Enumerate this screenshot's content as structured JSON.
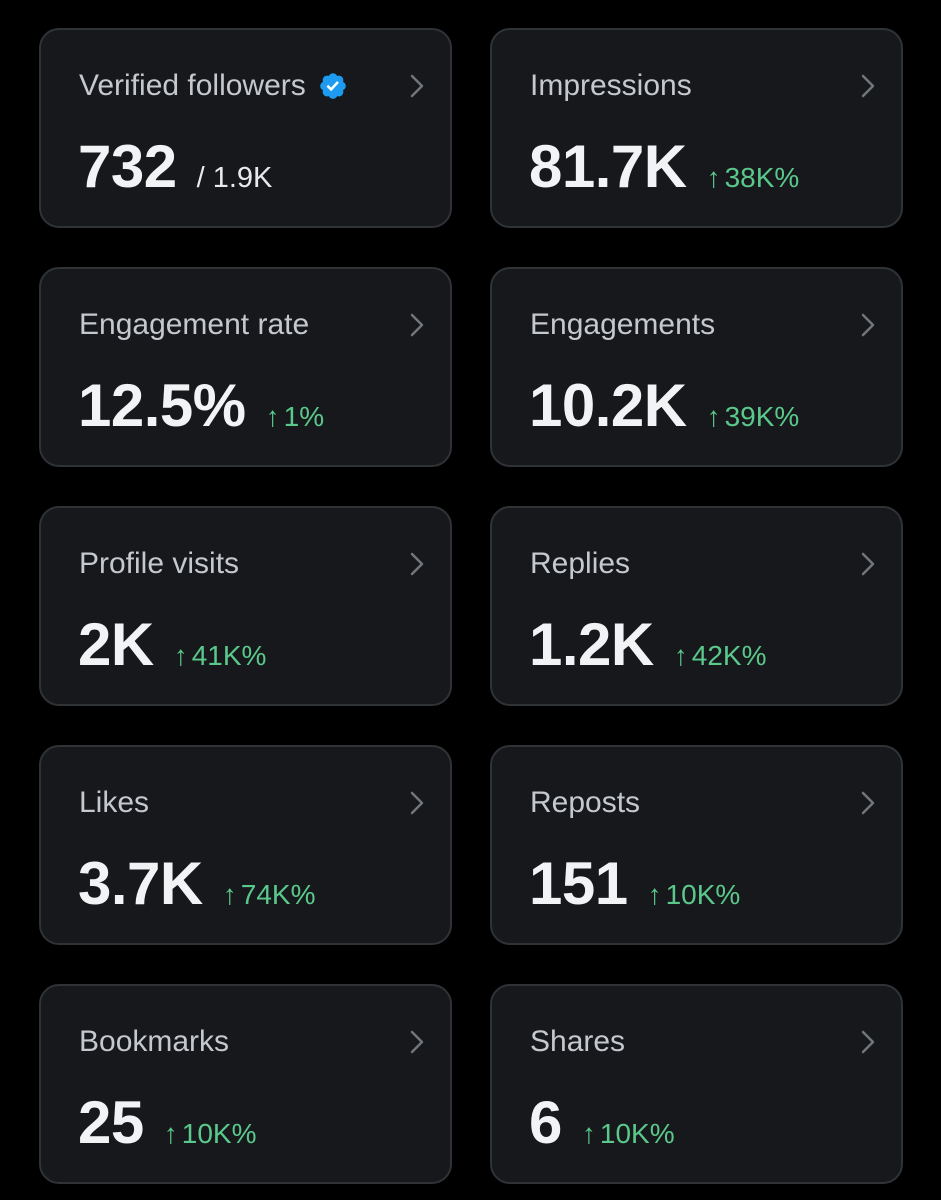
{
  "colors": {
    "background": "#000000",
    "card_background": "#16181c",
    "card_border": "#2f3336",
    "positive_change": "#5bc88b",
    "verified_badge": "#1d9bf0"
  },
  "icons": {
    "verified": "verified-badge-icon",
    "chevron": "chevron-right-icon",
    "trend_arrow": "arrow-up-icon"
  },
  "cards": [
    {
      "title": "Verified followers",
      "value": "732",
      "secondary": "/ 1.9K"
    },
    {
      "title": "Impressions",
      "value": "81.7K",
      "arrow": "↑",
      "change": "38K%"
    },
    {
      "title": "Engagement rate",
      "value": "12.5%",
      "arrow": "↑",
      "change": "1%"
    },
    {
      "title": "Engagements",
      "value": "10.2K",
      "arrow": "↑",
      "change": "39K%"
    },
    {
      "title": "Profile visits",
      "value": "2K",
      "arrow": "↑",
      "change": "41K%"
    },
    {
      "title": "Replies",
      "value": "1.2K",
      "arrow": "↑",
      "change": "42K%"
    },
    {
      "title": "Likes",
      "value": "3.7K",
      "arrow": "↑",
      "change": "74K%"
    },
    {
      "title": "Reposts",
      "value": "151",
      "arrow": "↑",
      "change": "10K%"
    },
    {
      "title": "Bookmarks",
      "value": "25",
      "arrow": "↑",
      "change": "10K%"
    },
    {
      "title": "Shares",
      "value": "6",
      "arrow": "↑",
      "change": "10K%"
    }
  ]
}
